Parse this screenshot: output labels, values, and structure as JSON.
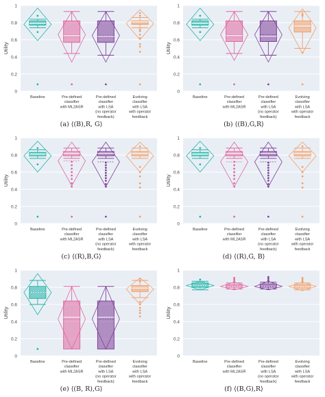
{
  "colors": {
    "baseline": "#1fb5a7",
    "ml2asr": "#e0679e",
    "lsa": "#7f3f98",
    "evolving": "#f2a06a",
    "panel_bg": "#e9eef5",
    "grid": "#ffffff"
  },
  "categories": [
    "Baseline",
    "Pre-defined classifier with ML2ASR",
    "Pre-defined classifier with LSA (no operator feedback)",
    "Evolving classifier with LSA with operator feedback"
  ],
  "category_lines": [
    [
      "Baseline"
    ],
    [
      "Pre-defined",
      "classifier",
      "with ML2ASR"
    ],
    [
      "Pre-defined",
      "classifier",
      "with LSA",
      "(no operator",
      "feedback)"
    ],
    [
      "Evolving",
      "classifier",
      "with LSA",
      "with operator",
      "feedback"
    ]
  ],
  "axis": {
    "ylabel": "Utility",
    "yticks": [
      "0",
      "0.2",
      "0.4",
      "0.6",
      "0.8",
      "1"
    ]
  },
  "chart_data": [
    {
      "type": "box",
      "caption": "(a) ⟨(B),R, G⟩",
      "ylim": [
        0,
        1
      ],
      "series": [
        {
          "q1": 0.77,
          "median": 0.79,
          "q3": 0.82,
          "lower": 0.74,
          "upper": 0.84,
          "mean": 0.78,
          "diamond_min": 0.59,
          "diamond_max": 0.97,
          "outliers": [
            0.08,
            0.69,
            0.88
          ]
        },
        {
          "q1": 0.57,
          "median": 0.65,
          "q3": 0.82,
          "lower": 0.44,
          "upper": 0.93,
          "mean": 0.66,
          "diamond_min": 0.34,
          "diamond_max": 0.93,
          "outliers": [
            0.08
          ]
        },
        {
          "q1": 0.57,
          "median": 0.64,
          "q3": 0.82,
          "lower": 0.42,
          "upper": 0.93,
          "mean": 0.65,
          "diamond_min": 0.34,
          "diamond_max": 0.93,
          "outliers": [
            0.08
          ]
        },
        {
          "q1": 0.78,
          "median": 0.81,
          "q3": 0.82,
          "lower": 0.74,
          "upper": 0.86,
          "mean": 0.79,
          "diamond_min": 0.6,
          "diamond_max": 0.95,
          "outliers": [
            0.08,
            0.46,
            0.52,
            0.55,
            0.62,
            0.66,
            0.7,
            0.72,
            0.88,
            0.91
          ]
        }
      ]
    },
    {
      "type": "box",
      "caption": "(b) ⟨(B),G,R⟩",
      "ylim": [
        0,
        1
      ],
      "series": [
        {
          "q1": 0.77,
          "median": 0.79,
          "q3": 0.82,
          "lower": 0.74,
          "upper": 0.84,
          "mean": 0.78,
          "diamond_min": 0.59,
          "diamond_max": 0.97,
          "outliers": [
            0.08,
            0.69,
            0.88
          ]
        },
        {
          "q1": 0.58,
          "median": 0.65,
          "q3": 0.82,
          "lower": 0.44,
          "upper": 0.93,
          "mean": 0.66,
          "diamond_min": 0.36,
          "diamond_max": 0.93,
          "outliers": [
            0.08
          ]
        },
        {
          "q1": 0.58,
          "median": 0.64,
          "q3": 0.82,
          "lower": 0.42,
          "upper": 0.93,
          "mean": 0.66,
          "diamond_min": 0.34,
          "diamond_max": 0.93,
          "outliers": [
            0.08
          ]
        },
        {
          "q1": 0.69,
          "median": 0.76,
          "q3": 0.82,
          "lower": 0.5,
          "upper": 0.93,
          "mean": 0.74,
          "diamond_min": 0.44,
          "diamond_max": 0.96,
          "outliers": [
            0.08,
            0.45,
            0.88,
            0.9
          ]
        }
      ]
    },
    {
      "type": "box",
      "caption": "(c) ⟨(R),B,G⟩",
      "ylim": [
        0,
        1
      ],
      "series": [
        {
          "q1": 0.79,
          "median": 0.81,
          "q3": 0.83,
          "lower": 0.76,
          "upper": 0.86,
          "mean": 0.79,
          "diamond_min": 0.6,
          "diamond_max": 0.96,
          "outliers": [
            0.08,
            0.69,
            0.88
          ]
        },
        {
          "q1": 0.79,
          "median": 0.82,
          "q3": 0.84,
          "lower": 0.76,
          "upper": 0.88,
          "mean": 0.73,
          "diamond_min": 0.44,
          "diamond_max": 0.95,
          "outliers": [
            0.08,
            0.43,
            0.47,
            0.52,
            0.56,
            0.6,
            0.64,
            0.68,
            0.72
          ]
        },
        {
          "q1": 0.79,
          "median": 0.82,
          "q3": 0.84,
          "lower": 0.76,
          "upper": 0.88,
          "mean": 0.72,
          "diamond_min": 0.43,
          "diamond_max": 0.95,
          "outliers": [
            0.08,
            0.43,
            0.46,
            0.5,
            0.53,
            0.56,
            0.59,
            0.62,
            0.65,
            0.68,
            0.71
          ]
        },
        {
          "q1": 0.79,
          "median": 0.82,
          "q3": 0.84,
          "lower": 0.76,
          "upper": 0.88,
          "mean": 0.79,
          "diamond_min": 0.6,
          "diamond_max": 0.95,
          "outliers": [
            0.08,
            0.42,
            0.47,
            0.55,
            0.6,
            0.66,
            0.9
          ]
        }
      ]
    },
    {
      "type": "box",
      "caption": "(d) ⟨(R),G, B⟩",
      "ylim": [
        0,
        1
      ],
      "series": [
        {
          "q1": 0.79,
          "median": 0.81,
          "q3": 0.83,
          "lower": 0.76,
          "upper": 0.86,
          "mean": 0.79,
          "diamond_min": 0.6,
          "diamond_max": 0.96,
          "outliers": [
            0.08,
            0.69,
            0.88
          ]
        },
        {
          "q1": 0.79,
          "median": 0.82,
          "q3": 0.84,
          "lower": 0.76,
          "upper": 0.88,
          "mean": 0.72,
          "diamond_min": 0.43,
          "diamond_max": 0.95,
          "outliers": [
            0.08,
            0.43,
            0.47,
            0.52,
            0.56,
            0.6,
            0.64,
            0.68,
            0.72
          ]
        },
        {
          "q1": 0.79,
          "median": 0.82,
          "q3": 0.84,
          "lower": 0.76,
          "upper": 0.88,
          "mean": 0.72,
          "diamond_min": 0.43,
          "diamond_max": 0.95,
          "outliers": [
            0.08,
            0.43,
            0.46,
            0.5,
            0.53,
            0.56,
            0.59,
            0.62,
            0.65,
            0.68,
            0.71
          ]
        },
        {
          "q1": 0.79,
          "median": 0.82,
          "q3": 0.84,
          "lower": 0.76,
          "upper": 0.88,
          "mean": 0.79,
          "diamond_min": 0.6,
          "diamond_max": 0.95,
          "outliers": [
            0.08,
            0.42,
            0.47,
            0.55,
            0.6,
            0.66,
            0.9
          ]
        }
      ]
    },
    {
      "type": "box",
      "caption": "(e) ⟨(B, R),G⟩",
      "ylim": [
        0,
        1
      ],
      "series": [
        {
          "q1": 0.67,
          "median": 0.74,
          "q3": 0.81,
          "lower": 0.6,
          "upper": 0.88,
          "mean": 0.74,
          "diamond_min": 0.48,
          "diamond_max": 0.96,
          "outliers": [
            0.08
          ]
        },
        {
          "q1": 0.08,
          "median": 0.45,
          "q3": 0.64,
          "lower": 0.08,
          "upper": 0.81,
          "mean": 0.43,
          "diamond_min": 0.08,
          "diamond_max": 0.81,
          "outliers": []
        },
        {
          "q1": 0.08,
          "median": 0.45,
          "q3": 0.64,
          "lower": 0.08,
          "upper": 0.81,
          "mean": 0.43,
          "diamond_min": 0.08,
          "diamond_max": 0.81,
          "outliers": []
        },
        {
          "q1": 0.75,
          "median": 0.79,
          "q3": 0.82,
          "lower": 0.68,
          "upper": 0.88,
          "mean": 0.78,
          "diamond_min": 0.6,
          "diamond_max": 0.91,
          "outliers": [
            0.46,
            0.5,
            0.53,
            0.56,
            0.6,
            0.63,
            0.87,
            0.9
          ]
        }
      ]
    },
    {
      "type": "box",
      "caption": "(f) ⟨(B,G),R⟩",
      "ylim": [
        0,
        1
      ],
      "series": [
        {
          "q1": 0.8,
          "median": 0.82,
          "q3": 0.85,
          "lower": 0.77,
          "upper": 0.87,
          "mean": 0.82,
          "diamond_min": 0.77,
          "diamond_max": 0.87,
          "outliers": [
            0.89
          ]
        },
        {
          "q1": 0.8,
          "median": 0.81,
          "q3": 0.83,
          "lower": 0.78,
          "upper": 0.85,
          "mean": 0.81,
          "diamond_min": 0.77,
          "diamond_max": 0.86,
          "outliers": [
            0.87,
            0.89,
            0.91
          ]
        },
        {
          "q1": 0.8,
          "median": 0.81,
          "q3": 0.84,
          "lower": 0.78,
          "upper": 0.86,
          "mean": 0.81,
          "diamond_min": 0.77,
          "diamond_max": 0.87,
          "outliers": [
            0.88,
            0.9,
            0.92
          ]
        },
        {
          "q1": 0.79,
          "median": 0.81,
          "q3": 0.83,
          "lower": 0.77,
          "upper": 0.85,
          "mean": 0.81,
          "diamond_min": 0.76,
          "diamond_max": 0.86,
          "outliers": [
            0.87,
            0.89,
            0.91
          ]
        }
      ]
    }
  ]
}
